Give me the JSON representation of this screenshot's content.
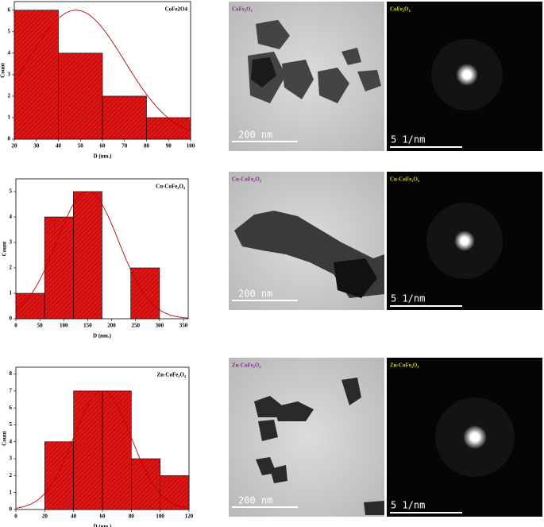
{
  "chart_data": [
    {
      "type": "histogram",
      "label": "CoFe2O4",
      "xlabel": "D (nm.)",
      "ylabel": "Count",
      "bins": [
        20,
        40,
        60,
        80,
        100
      ],
      "counts": [
        6,
        4,
        2,
        1
      ],
      "color": "#e01515",
      "fit": {
        "mean": 48,
        "sd": 22,
        "peak": 6
      },
      "fit_color": "#c00000",
      "xlim": [
        20,
        100
      ],
      "xticks": [
        20,
        30,
        40,
        50,
        60,
        70,
        80,
        90,
        100
      ],
      "ylim": [
        0,
        6.4
      ],
      "yticks": [
        0,
        1,
        2,
        3,
        4,
        5,
        6
      ]
    },
    {
      "type": "histogram",
      "label": "Cu-CoFe₂O₄",
      "xlabel": "D (nm.)",
      "ylabel": "Count",
      "bins": [
        0,
        60,
        120,
        180,
        240,
        300
      ],
      "counts": [
        1,
        4,
        5,
        0,
        2
      ],
      "color": "#e01515",
      "fit": {
        "mean": 150,
        "sd": 65,
        "peak": 5
      },
      "fit_color": "#c00000",
      "xlim": [
        0,
        360
      ],
      "xticks": [
        0,
        50,
        100,
        150,
        200,
        250,
        300,
        350
      ],
      "ylim": [
        0,
        5.5
      ],
      "yticks": [
        0,
        1,
        2,
        3,
        4,
        5
      ]
    },
    {
      "type": "histogram",
      "label": "Zn-CoFe₂O₄",
      "xlabel": "D (nm.)",
      "ylabel": "Count",
      "bins": [
        20,
        40,
        60,
        80,
        100,
        120
      ],
      "counts": [
        4,
        7,
        7,
        3,
        2
      ],
      "color": "#e01515",
      "fit": {
        "mean": 60,
        "sd": 20,
        "peak": 7
      },
      "fit_color": "#c00000",
      "xlim": [
        0,
        120
      ],
      "xticks": [
        0,
        20,
        40,
        60,
        80,
        100,
        120
      ],
      "ylim": [
        0,
        8.4
      ],
      "yticks": [
        0,
        1,
        2,
        3,
        4,
        5,
        6,
        7,
        8
      ]
    }
  ],
  "images": [
    {
      "tem_label": "CoFe₂O₄",
      "tem_scale": "200 nm",
      "saed_label": "CoFe₂O₄",
      "saed_scale": "5 1/nm"
    },
    {
      "tem_label": "Cu-CoFe₂O₄",
      "tem_scale": "200 nm",
      "saed_label": "Cu-CoFe₂O₄",
      "saed_scale": "5 1/nm"
    },
    {
      "tem_label": "Zn-CoFe₂O₄",
      "tem_scale": "200 nm",
      "saed_label": "Zn-CoFe₂O₄",
      "saed_scale": "5 1/nm"
    }
  ]
}
